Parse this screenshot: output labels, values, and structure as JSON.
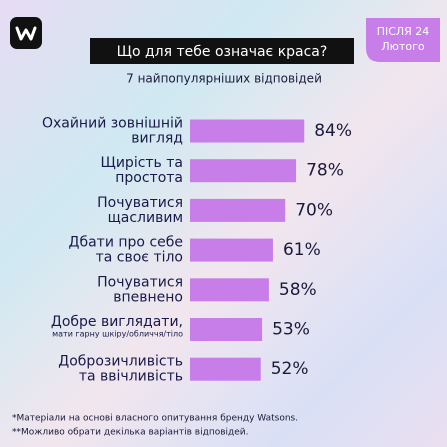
{
  "chart_data": {
    "type": "bar",
    "orientation": "horizontal",
    "title": "Що для тебе означає краса?",
    "subtitle": "7 найпопулярніших відповідей",
    "badge": [
      "ПІСЛЯ 24",
      "Лютого"
    ],
    "categories": [
      [
        "Охайний зовнішній",
        "вигляд"
      ],
      [
        "Щирість та",
        "простота"
      ],
      [
        "Почуватися",
        "щасливим"
      ],
      [
        "Дбати про себе",
        "та своє тіло"
      ],
      [
        "Почуватися",
        "впевнено"
      ],
      [
        "Добре виглядати,"
      ],
      [
        "Доброзичливість",
        "та ввічливість"
      ]
    ],
    "category_notes": [
      null,
      null,
      null,
      null,
      null,
      "мати гарну шкіру/обличчя/тіло",
      null
    ],
    "values": [
      84,
      78,
      70,
      61,
      58,
      53,
      52
    ],
    "value_labels": [
      "84%",
      "78%",
      "70%",
      "61%",
      "58%",
      "53%",
      "52%"
    ],
    "color": "#c77ee8",
    "xlim": [
      0,
      100
    ],
    "footnotes": [
      "*Матеріали на основі власного опитування бренду Watsons.",
      "**Можливо обрати декілька варіантів відповідей."
    ]
  }
}
